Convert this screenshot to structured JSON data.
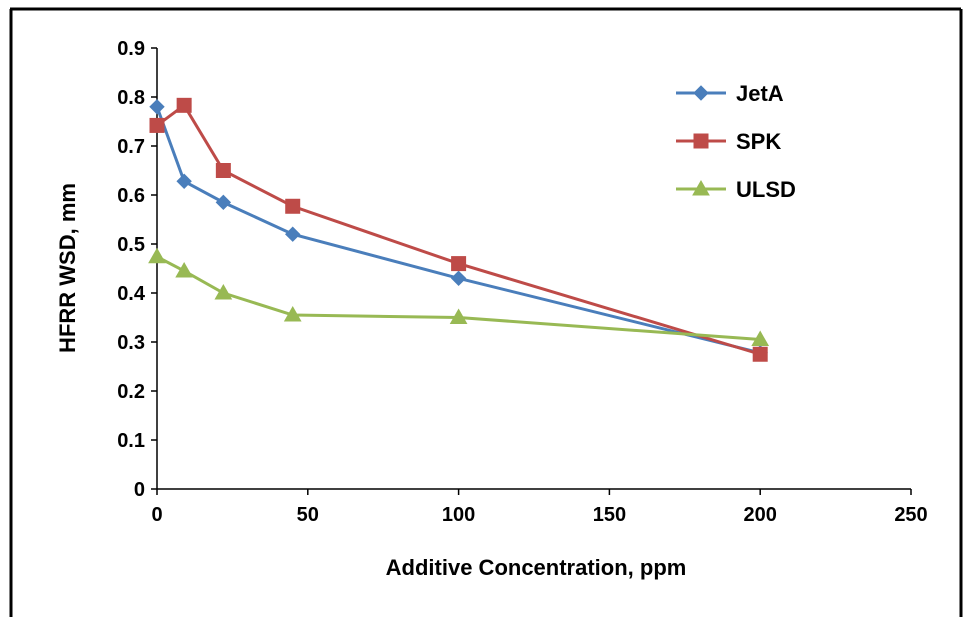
{
  "chart_data": {
    "type": "line",
    "title": "",
    "xlabel": "Additive Concentration, ppm",
    "ylabel": "HFRR WSD, mm",
    "xlim": [
      0,
      250
    ],
    "ylim": [
      0,
      0.9
    ],
    "x_ticks": [
      "0",
      "50",
      "100",
      "150",
      "200",
      "250"
    ],
    "y_ticks": [
      "0",
      "0.1",
      "0.2",
      "0.3",
      "0.4",
      "0.5",
      "0.6",
      "0.7",
      "0.8",
      "0.9"
    ],
    "grid": false,
    "legend_position": "top-right",
    "series": [
      {
        "name": "JetA",
        "color": "#4a7ebb",
        "marker": "diamond",
        "x": [
          0,
          9,
          22,
          45,
          100,
          200
        ],
        "y": [
          0.78,
          0.628,
          0.585,
          0.52,
          0.43,
          0.278
        ]
      },
      {
        "name": "SPK",
        "color": "#be4b48",
        "marker": "square",
        "x": [
          0,
          9,
          22,
          45,
          100,
          200
        ],
        "y": [
          0.742,
          0.783,
          0.65,
          0.577,
          0.46,
          0.275
        ]
      },
      {
        "name": "ULSD",
        "color": "#98b954",
        "marker": "triangle",
        "x": [
          0,
          9,
          22,
          45,
          100,
          200
        ],
        "y": [
          0.474,
          0.445,
          0.4,
          0.355,
          0.35,
          0.305
        ]
      }
    ]
  }
}
